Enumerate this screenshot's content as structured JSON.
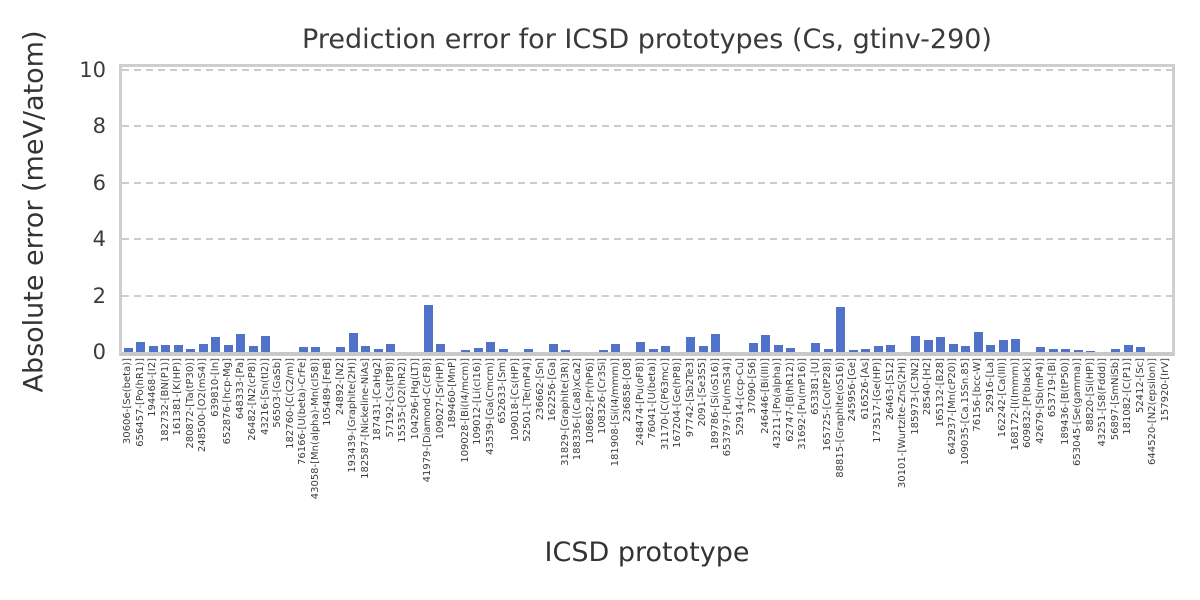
{
  "chart_data": {
    "type": "bar",
    "title": "Prediction error for ICSD prototypes (Cs, gtinv-290)",
    "xlabel": "ICSD prototype",
    "ylabel": "Absolute error (meV/atom)",
    "ylim": [
      0,
      10.1
    ],
    "yticks": [
      0,
      2,
      4,
      6,
      8,
      10
    ],
    "grid": "horizontal-dashed",
    "legend": "none",
    "bar_color": "#5072C8",
    "categories": [
      "30606-[Se(beta)]",
      "656457-[Po(hR1)]",
      "194468-[I2]",
      "182732-[BN(P1)]",
      "161381-[K(HP)]",
      "280872-[Ta(tP30)]",
      "248500-[O2(mS4)]",
      "639810-[In]",
      "652876-[hcp-Mg]",
      "648333-[Pa]",
      "26482-[N2(cP8)]",
      "43216-[Sn(tI2)]",
      "56503-[GaSb]",
      "182760-[C(C2/m)]",
      "76166-[U(beta)-CrFe]",
      "43058-[Mn(alpha)-Mn(cI58)]",
      "105489-[FeB]",
      "24892-[N2]",
      "193439-[Graphite(2H)]",
      "182587-[Nickeline-NiAs]",
      "187431-[CaHg2]",
      "57192-[Cs(tP8)]",
      "15535-[O2(hR2)]",
      "104296-[Hg(LT)]",
      "41979-[Diamond-C(cF8)]",
      "109027-[Sr(HP)]",
      "189460-[MnP]",
      "109028-[Bi(I4/mcm)]",
      "109012-[Li(cI16)]",
      "43539-[Ga(Cmcm)]",
      "652633-[Sm]",
      "109018-[Cs(HP)]",
      "52501-[Te(mP4)]",
      "236662-[Sn]",
      "162256-[Ga]",
      "31829-[Graphite(3R)]",
      "188336-[(Ca8)xCa2]",
      "108682-[Pr(hP6)]",
      "108326-[Cr3Si]",
      "181908-[Si(I4/mmm)]",
      "236858-[O8]",
      "248474-[Pu(oF8)]",
      "76041-[U(beta)]",
      "31170-[C(P63mc)]",
      "167204-[Ge(hP8)]",
      "97742-[Sb2Te3]",
      "2091-[Se3S5]",
      "189786-[Si(oS16)]",
      "653797-[Pu(mS34)]",
      "52914-[ccp-Cu]",
      "37090-[S6]",
      "246446-[Bi(III)]",
      "43211-[Po(alpha)]",
      "62747-[B(hR12)]",
      "31692-[Pu(mP16)]",
      "653381-[U]",
      "165725-[Co(tP28)]",
      "88815-[Graphite(oS16)]",
      "245956-[Ge]",
      "616526-[As]",
      "173517-[Ge(HP)]",
      "26463-[S12]",
      "30101-[Wurtzite-ZnS(2H)]",
      "185973-[C3N2]",
      "28540-[H2]",
      "165132-[B28]",
      "642937-[Mn(cP20)]",
      "109035-[Ca.15Sn.85]",
      "76156-[bcc-W]",
      "52916-[La]",
      "162242-[Ca(III)]",
      "168172-[I(Immm)]",
      "609832-[P(black)]",
      "42679-[Sb(mP4)]",
      "653719-[Bi]",
      "189436-[B(tP50)]",
      "653045-[Se(gamma)]",
      "88820-[Si(HP)]",
      "43251-[S8(Fddd)]",
      "56897-[SmNiSb]",
      "181082-[C(P1)]",
      "52412-[Sc]",
      "644520-[N2(epsilon)]",
      "157920-[IrV]"
    ],
    "values": [
      0.15,
      0.35,
      0.2,
      0.25,
      0.25,
      0.1,
      0.3,
      0.53,
      0.25,
      0.64,
      0.2,
      0.55,
      0.01,
      0.01,
      0.16,
      0.16,
      0.01,
      0.18,
      0.69,
      0.23,
      0.11,
      0.28,
      0.01,
      0.01,
      1.68,
      0.28,
      0.01,
      0.08,
      0.13,
      0.36,
      0.11,
      0.01,
      0.11,
      0.01,
      0.3,
      0.07,
      0.01,
      0.01,
      0.06,
      0.3,
      0.01,
      0.34,
      0.1,
      0.22,
      0.01,
      0.53,
      0.2,
      0.65,
      0.01,
      0.01,
      0.33,
      0.6,
      0.25,
      0.13,
      0.01,
      0.31,
      0.09,
      1.6,
      0.07,
      0.09,
      0.21,
      0.26,
      0.01,
      0.57,
      0.43,
      0.54,
      0.27,
      0.22,
      0.71,
      0.24,
      0.43,
      0.46,
      0.01,
      0.19,
      0.1,
      0.12,
      0.06,
      0.05,
      0.01,
      0.09,
      0.24,
      0.19,
      0.01,
      0.01
    ]
  }
}
